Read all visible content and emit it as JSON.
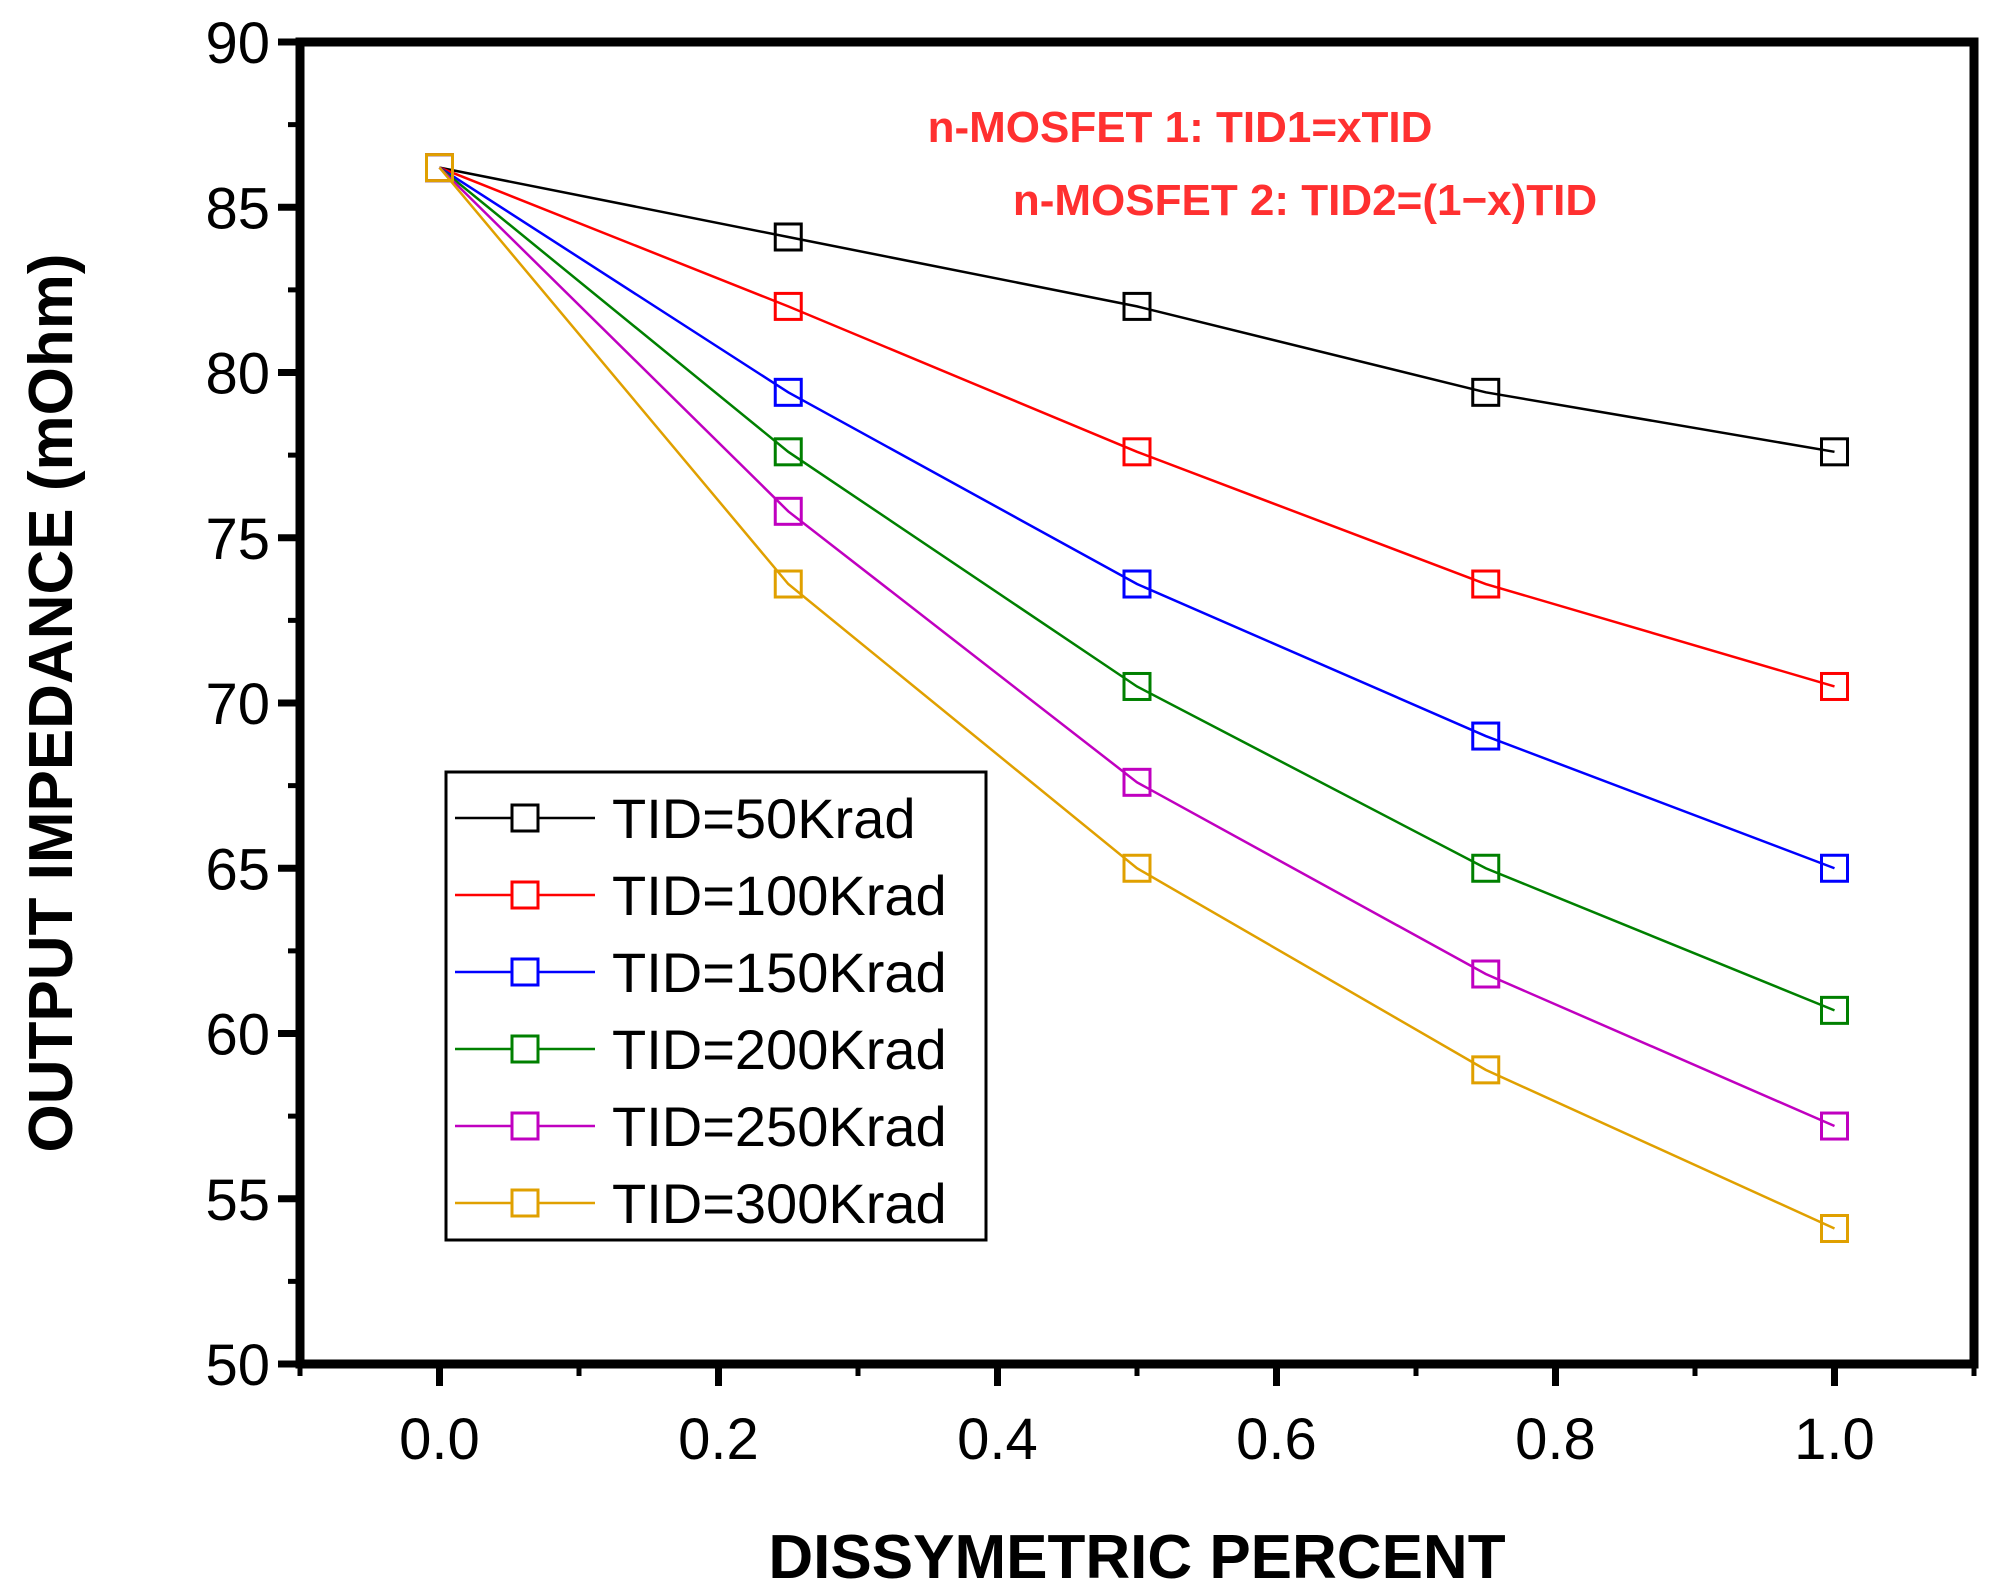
{
  "chart_data": {
    "type": "line",
    "title": "",
    "xlabel": "DISSYMETRIC PERCENT",
    "ylabel": "OUTPUT IMPEDANCE (mOhm)",
    "xlim": [
      -0.1,
      1.1
    ],
    "ylim": [
      50,
      90
    ],
    "x": [
      0.0,
      0.25,
      0.5,
      0.75,
      1.0
    ],
    "x_ticks": [
      0.0,
      0.2,
      0.4,
      0.6,
      0.8,
      1.0
    ],
    "x_tick_labels": [
      "0.0",
      "0.2",
      "0.4",
      "0.6",
      "0.8",
      "1.0"
    ],
    "y_ticks": [
      50,
      55,
      60,
      65,
      70,
      75,
      80,
      85,
      90
    ],
    "y_tick_labels": [
      "50",
      "55",
      "60",
      "65",
      "70",
      "75",
      "80",
      "85",
      "90"
    ],
    "marker": "open-square",
    "grid": false,
    "legend_position": "lower-left",
    "series": [
      {
        "name": "TID=50Krad",
        "color": "#000000",
        "values": [
          86.2,
          84.1,
          82.0,
          79.4,
          77.6
        ]
      },
      {
        "name": "TID=100Krad",
        "color": "#ff0000",
        "values": [
          86.2,
          82.0,
          77.6,
          73.6,
          70.5
        ]
      },
      {
        "name": "TID=150Krad",
        "color": "#0000ff",
        "values": [
          86.2,
          79.4,
          73.6,
          69.0,
          65.0
        ]
      },
      {
        "name": "TID=200Krad",
        "color": "#008000",
        "values": [
          86.2,
          77.6,
          70.5,
          65.0,
          60.7
        ]
      },
      {
        "name": "TID=250Krad",
        "color": "#c000c0",
        "values": [
          86.2,
          75.8,
          67.6,
          61.8,
          57.2
        ]
      },
      {
        "name": "TID=300Krad",
        "color": "#e0a000",
        "values": [
          86.2,
          73.6,
          65.0,
          58.9,
          54.1
        ]
      }
    ],
    "annotations": [
      {
        "text": "n-MOSFET 1: TID1=xTID",
        "color": "#ff3030"
      },
      {
        "text": "n-MOSFET 2: TID2=(1−x)TID",
        "color": "#ff3030"
      }
    ]
  }
}
